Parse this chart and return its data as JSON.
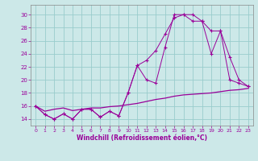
{
  "xlabel": "Windchill (Refroidissement éolien,°C)",
  "bg_color": "#cce8e8",
  "line_color": "#990099",
  "grid_color": "#99cccc",
  "xlim": [
    -0.5,
    23.5
  ],
  "ylim": [
    13.0,
    31.5
  ],
  "xticks": [
    0,
    1,
    2,
    3,
    4,
    5,
    6,
    7,
    8,
    9,
    10,
    11,
    12,
    13,
    14,
    15,
    16,
    17,
    18,
    19,
    20,
    21,
    22,
    23
  ],
  "yticks": [
    14,
    16,
    18,
    20,
    22,
    24,
    26,
    28,
    30
  ],
  "line1_x": [
    0,
    1,
    2,
    3,
    4,
    5,
    6,
    7,
    8,
    9,
    10,
    11,
    12,
    13,
    14,
    15,
    16,
    17,
    18,
    19,
    20,
    21,
    22,
    23
  ],
  "line1_y": [
    16.0,
    14.7,
    14.0,
    14.8,
    14.0,
    15.5,
    15.5,
    14.3,
    15.2,
    14.5,
    18.0,
    22.2,
    20.0,
    19.5,
    25.0,
    30.0,
    30.0,
    30.0,
    29.0,
    24.0,
    27.5,
    23.5,
    20.0,
    19.0
  ],
  "line2_x": [
    0,
    1,
    2,
    3,
    4,
    5,
    6,
    7,
    8,
    9,
    10,
    11,
    12,
    13,
    14,
    15,
    16,
    17,
    18,
    19,
    20,
    21,
    22,
    23
  ],
  "line2_y": [
    16.0,
    14.7,
    14.0,
    14.8,
    14.0,
    15.5,
    15.5,
    14.3,
    15.2,
    14.5,
    18.0,
    22.2,
    23.0,
    24.5,
    27.0,
    29.5,
    30.0,
    29.0,
    29.0,
    27.5,
    27.5,
    20.0,
    19.5,
    19.0
  ],
  "line3_x": [
    0,
    1,
    2,
    3,
    4,
    5,
    6,
    7,
    8,
    9,
    10,
    11,
    12,
    13,
    14,
    15,
    16,
    17,
    18,
    19,
    20,
    21,
    22,
    23
  ],
  "line3_y": [
    16.0,
    15.2,
    15.5,
    15.7,
    15.3,
    15.5,
    15.7,
    15.7,
    15.9,
    16.0,
    16.2,
    16.4,
    16.7,
    17.0,
    17.2,
    17.5,
    17.7,
    17.8,
    17.9,
    18.0,
    18.2,
    18.4,
    18.5,
    18.7
  ]
}
